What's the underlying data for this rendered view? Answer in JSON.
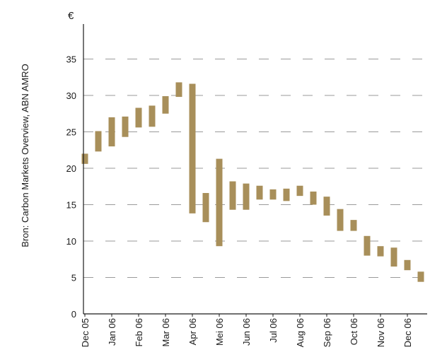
{
  "chart_data": {
    "type": "bar",
    "subtype": "floating-range",
    "source_note": "Bron: Carbon Markets Overview, ABN AMRO",
    "y_unit": "€",
    "ylim": [
      0,
      40
    ],
    "y_ticks": [
      0,
      5,
      10,
      15,
      20,
      25,
      30,
      35
    ],
    "grid": "horizontal dashed",
    "bar_color": "#a88f5a",
    "x_tick_labels": [
      "Dec 05",
      "Jan 06",
      "Feb 06",
      "Mar 06",
      "Apr 06",
      "Mei 06",
      "Jun 06",
      "Jul 06",
      "Aug 06",
      "Sep 06",
      "Oct 06",
      "Nov 06",
      "Dec 06"
    ],
    "bars": [
      {
        "x": 0.0,
        "low": 20.6,
        "high": 22.0
      },
      {
        "x": 0.5,
        "low": 22.3,
        "high": 25.1
      },
      {
        "x": 1.0,
        "low": 23.0,
        "high": 27.0
      },
      {
        "x": 1.5,
        "low": 24.3,
        "high": 27.1
      },
      {
        "x": 2.0,
        "low": 25.6,
        "high": 28.3
      },
      {
        "x": 2.5,
        "low": 25.7,
        "high": 28.6
      },
      {
        "x": 3.0,
        "low": 27.5,
        "high": 29.9
      },
      {
        "x": 3.5,
        "low": 29.8,
        "high": 31.8
      },
      {
        "x": 4.0,
        "low": 13.8,
        "high": 31.6
      },
      {
        "x": 4.5,
        "low": 12.6,
        "high": 16.6
      },
      {
        "x": 5.0,
        "low": 9.3,
        "high": 21.3
      },
      {
        "x": 5.5,
        "low": 14.3,
        "high": 18.2
      },
      {
        "x": 6.0,
        "low": 14.3,
        "high": 17.9
      },
      {
        "x": 6.5,
        "low": 15.7,
        "high": 17.6
      },
      {
        "x": 7.0,
        "low": 15.7,
        "high": 17.1
      },
      {
        "x": 7.5,
        "low": 15.5,
        "high": 17.2
      },
      {
        "x": 8.0,
        "low": 16.2,
        "high": 17.6
      },
      {
        "x": 8.5,
        "low": 15.0,
        "high": 16.8
      },
      {
        "x": 9.0,
        "low": 13.5,
        "high": 16.1
      },
      {
        "x": 9.5,
        "low": 11.4,
        "high": 14.4
      },
      {
        "x": 10.0,
        "low": 11.4,
        "high": 12.9
      },
      {
        "x": 10.5,
        "low": 8.0,
        "high": 10.7
      },
      {
        "x": 11.0,
        "low": 7.9,
        "high": 9.3
      },
      {
        "x": 11.5,
        "low": 6.5,
        "high": 9.1
      },
      {
        "x": 12.0,
        "low": 6.0,
        "high": 7.4
      },
      {
        "x": 12.5,
        "low": 4.4,
        "high": 5.8
      }
    ]
  }
}
